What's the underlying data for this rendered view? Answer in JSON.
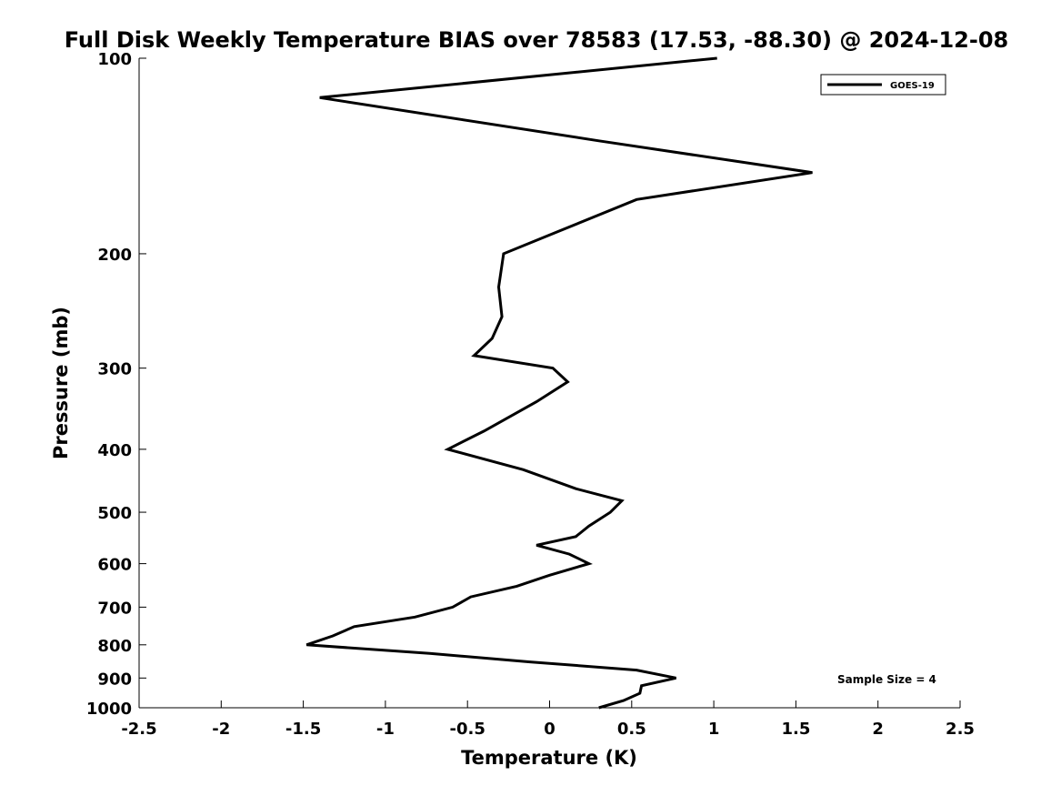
{
  "chart_data": {
    "type": "line",
    "title": "Full Disk Weekly Temperature BIAS over 78583 (17.53, -88.30) @ 2024-12-08",
    "xlabel": "Temperature (K)",
    "ylabel": "Pressure (mb)",
    "xlim": [
      -2.5,
      2.5
    ],
    "ylim": [
      100,
      1000
    ],
    "y_scale": "log",
    "y_reversed": true,
    "x_ticks": [
      "-2.5",
      "-2",
      "-1.5",
      "-1",
      "-0.5",
      "0",
      "0.5",
      "1",
      "1.5",
      "2",
      "2.5"
    ],
    "y_ticks": [
      "100",
      "200",
      "300",
      "400",
      "500",
      "600",
      "700",
      "800",
      "900",
      "1000"
    ],
    "grid": false,
    "legend": {
      "position": "top-right",
      "entries": [
        "GOES-19"
      ]
    },
    "annotation": "Sample Size = 4",
    "series": [
      {
        "name": "GOES-19",
        "color": "#000000",
        "points": [
          [
            1.02,
            100
          ],
          [
            -1.4,
            115
          ],
          [
            0.3,
            134
          ],
          [
            1.6,
            150
          ],
          [
            0.53,
            165
          ],
          [
            -0.28,
            200
          ],
          [
            -0.31,
            225
          ],
          [
            -0.29,
            250
          ],
          [
            -0.35,
            270
          ],
          [
            -0.46,
            287
          ],
          [
            0.02,
            300
          ],
          [
            0.11,
            315
          ],
          [
            -0.08,
            338
          ],
          [
            -0.4,
            375
          ],
          [
            -0.62,
            400
          ],
          [
            -0.16,
            430
          ],
          [
            0.16,
            460
          ],
          [
            0.44,
            480
          ],
          [
            0.37,
            500
          ],
          [
            0.24,
            525
          ],
          [
            0.16,
            545
          ],
          [
            -0.08,
            562
          ],
          [
            0.12,
            580
          ],
          [
            0.24,
            600
          ],
          [
            0.0,
            625
          ],
          [
            -0.2,
            650
          ],
          [
            -0.48,
            675
          ],
          [
            -0.59,
            700
          ],
          [
            -0.82,
            725
          ],
          [
            -1.19,
            750
          ],
          [
            -1.32,
            775
          ],
          [
            -1.48,
            800
          ],
          [
            -0.73,
            825
          ],
          [
            -0.12,
            850
          ],
          [
            0.53,
            875
          ],
          [
            0.77,
            900
          ],
          [
            0.56,
            925
          ],
          [
            0.55,
            950
          ],
          [
            0.45,
            975
          ],
          [
            0.3,
            1000
          ]
        ]
      }
    ]
  }
}
